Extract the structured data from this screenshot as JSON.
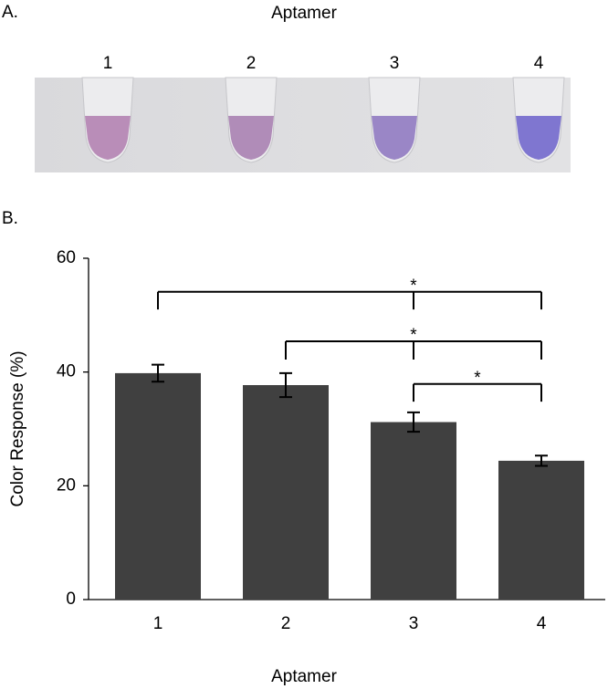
{
  "panel_a": {
    "label": "A.",
    "title": "Aptamer",
    "tube_labels": [
      "1",
      "2",
      "3",
      "4"
    ]
  },
  "chart_data": {
    "type": "bar",
    "panel_label": "B.",
    "x_label": "Aptamer",
    "y_label": "Color Response (%)",
    "categories": [
      "1",
      "2",
      "3",
      "4"
    ],
    "values": [
      39.8,
      37.7,
      31.2,
      24.4
    ],
    "errors": [
      1.5,
      2.1,
      1.7,
      0.9
    ],
    "color": "#404040",
    "ylim": [
      0,
      60
    ],
    "yticks": [
      0,
      20,
      40,
      60
    ],
    "significance": [
      {
        "drops": [
          0,
          2,
          3
        ],
        "y": 54.1,
        "drop_to": 51,
        "label_at": 2,
        "label": "*"
      },
      {
        "drops": [
          1,
          2,
          3
        ],
        "y": 45.4,
        "drop_to": 42.2,
        "label_at": 2,
        "label": "*"
      },
      {
        "drops": [
          2,
          3
        ],
        "y": 37.9,
        "drop_to": 34.8,
        "label_at": 2.5,
        "label": "*"
      }
    ]
  }
}
